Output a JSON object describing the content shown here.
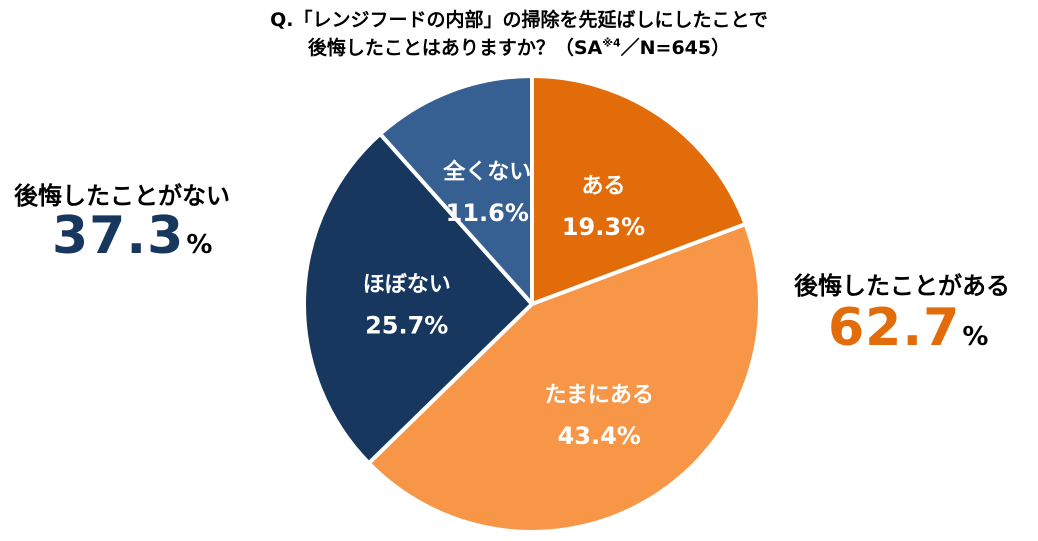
{
  "chart_data": {
    "type": "pie",
    "title_line1": "Q.「レンジフードの内部」の掃除を先延ばしにしたことで",
    "title_line2": "後悔したことはありますか？（SA",
    "title_sup": "※4",
    "title_line2_end": "／N=645）",
    "slices": [
      {
        "label": "ある",
        "value": 19.3,
        "value_label": "19.3%",
        "color": "#E36C0A"
      },
      {
        "label": "たまにある",
        "value": 43.4,
        "value_label": "43.4%",
        "color": "#F79646"
      },
      {
        "label": "ほぼない",
        "value": 25.7,
        "value_label": "25.7%",
        "color": "#17375E"
      },
      {
        "label": "全くない",
        "value": 11.6,
        "value_label": "11.6%",
        "color": "#376092"
      }
    ],
    "groups": {
      "regret": {
        "label": "後悔したことがある",
        "value": "62.7",
        "unit": "%",
        "color": "#E36C0A"
      },
      "no_regret": {
        "label": "後悔したことがない",
        "value": "37.3",
        "unit": "%",
        "color": "#17375E"
      }
    }
  }
}
